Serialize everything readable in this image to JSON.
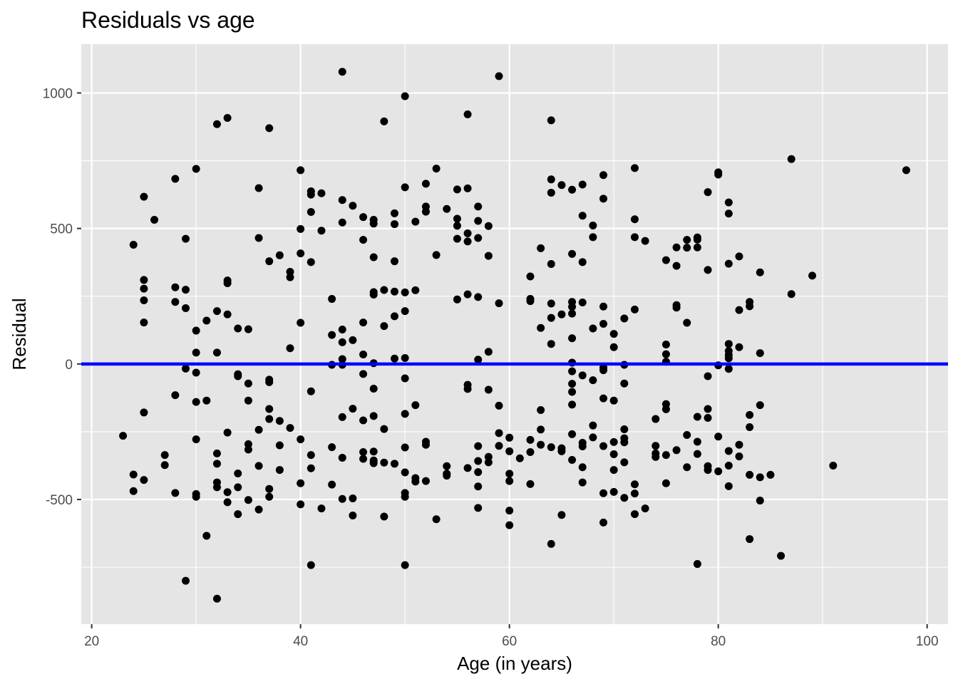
{
  "chart_data": {
    "type": "scatter",
    "title": "Residuals vs age",
    "xlabel": "Age (in years)",
    "ylabel": "Residual",
    "xlim": [
      19,
      102
    ],
    "ylim": [
      -960,
      1180
    ],
    "xticks": [
      20,
      40,
      60,
      80,
      100
    ],
    "xtick_labels": [
      "20",
      "40",
      "60",
      "80",
      "100"
    ],
    "yticks": [
      -500,
      0,
      500,
      1000
    ],
    "ytick_labels": [
      "-500",
      "0",
      "500",
      "1000"
    ],
    "grid": true,
    "legend": "none",
    "reference_line": {
      "y": 0,
      "color": "#0000ff"
    },
    "colors": {
      "panel": "#e5e5e5",
      "grid": "#ffffff",
      "points": "#000000",
      "line": "#0000ff"
    },
    "points": [
      [
        23,
        -265
      ],
      [
        24,
        440
      ],
      [
        24,
        -408
      ],
      [
        24,
        -469
      ],
      [
        25,
        617
      ],
      [
        25,
        310
      ],
      [
        25,
        278
      ],
      [
        25,
        235
      ],
      [
        25,
        153
      ],
      [
        25,
        -179
      ],
      [
        25,
        -428
      ],
      [
        26,
        532
      ],
      [
        27,
        -336
      ],
      [
        27,
        -373
      ],
      [
        28,
        683
      ],
      [
        28,
        283
      ],
      [
        28,
        229
      ],
      [
        28,
        -115
      ],
      [
        28,
        -476
      ],
      [
        29,
        462
      ],
      [
        29,
        274
      ],
      [
        29,
        206
      ],
      [
        29,
        -17
      ],
      [
        29,
        -800
      ],
      [
        30,
        720
      ],
      [
        30,
        123
      ],
      [
        30,
        42
      ],
      [
        30,
        -32
      ],
      [
        30,
        -140
      ],
      [
        30,
        -278
      ],
      [
        30,
        -480
      ],
      [
        30,
        -490
      ],
      [
        31,
        160
      ],
      [
        31,
        -135
      ],
      [
        31,
        -634
      ],
      [
        32,
        885
      ],
      [
        32,
        195
      ],
      [
        32,
        42
      ],
      [
        32,
        -330
      ],
      [
        32,
        -368
      ],
      [
        32,
        -437
      ],
      [
        32,
        -455
      ],
      [
        32,
        -866
      ],
      [
        33,
        908
      ],
      [
        33,
        308
      ],
      [
        33,
        298
      ],
      [
        33,
        183
      ],
      [
        33,
        -253
      ],
      [
        33,
        -473
      ],
      [
        33,
        -510
      ],
      [
        34,
        131
      ],
      [
        34,
        -38
      ],
      [
        34,
        -45
      ],
      [
        34,
        -404
      ],
      [
        34,
        -455
      ],
      [
        34,
        -554
      ],
      [
        35,
        128
      ],
      [
        35,
        -72
      ],
      [
        35,
        -135
      ],
      [
        35,
        -296
      ],
      [
        35,
        -316
      ],
      [
        35,
        -502
      ],
      [
        36,
        649
      ],
      [
        36,
        465
      ],
      [
        36,
        -243
      ],
      [
        36,
        -376
      ],
      [
        36,
        -537
      ],
      [
        37,
        870
      ],
      [
        37,
        379
      ],
      [
        37,
        -58
      ],
      [
        37,
        -67
      ],
      [
        37,
        -166
      ],
      [
        37,
        -203
      ],
      [
        37,
        -461
      ],
      [
        37,
        -490
      ],
      [
        38,
        401
      ],
      [
        38,
        -210
      ],
      [
        38,
        -300
      ],
      [
        38,
        -391
      ],
      [
        39,
        340
      ],
      [
        39,
        320
      ],
      [
        39,
        58
      ],
      [
        39,
        -236
      ],
      [
        40,
        715
      ],
      [
        40,
        498
      ],
      [
        40,
        408
      ],
      [
        40,
        152
      ],
      [
        40,
        -278
      ],
      [
        40,
        -440
      ],
      [
        40,
        -518
      ],
      [
        41,
        637
      ],
      [
        41,
        625
      ],
      [
        41,
        561
      ],
      [
        41,
        376
      ],
      [
        41,
        -101
      ],
      [
        41,
        -336
      ],
      [
        41,
        -385
      ],
      [
        41,
        -742
      ],
      [
        42,
        630
      ],
      [
        42,
        492
      ],
      [
        42,
        -533
      ],
      [
        43,
        240
      ],
      [
        43,
        107
      ],
      [
        43,
        -3
      ],
      [
        43,
        -307
      ],
      [
        43,
        -445
      ],
      [
        44,
        1078
      ],
      [
        44,
        605
      ],
      [
        44,
        522
      ],
      [
        44,
        127
      ],
      [
        44,
        80
      ],
      [
        44,
        18
      ],
      [
        44,
        -3
      ],
      [
        44,
        -196
      ],
      [
        44,
        -346
      ],
      [
        44,
        -498
      ],
      [
        45,
        584
      ],
      [
        45,
        88
      ],
      [
        45,
        -165
      ],
      [
        45,
        -496
      ],
      [
        45,
        -559
      ],
      [
        46,
        542
      ],
      [
        46,
        458
      ],
      [
        46,
        153
      ],
      [
        46,
        35
      ],
      [
        46,
        -37
      ],
      [
        46,
        -208
      ],
      [
        46,
        -325
      ],
      [
        46,
        -350
      ],
      [
        47,
        532
      ],
      [
        47,
        518
      ],
      [
        47,
        394
      ],
      [
        47,
        265
      ],
      [
        47,
        256
      ],
      [
        47,
        3
      ],
      [
        47,
        -91
      ],
      [
        47,
        -192
      ],
      [
        47,
        -323
      ],
      [
        47,
        -356
      ],
      [
        47,
        -366
      ],
      [
        48,
        895
      ],
      [
        48,
        273
      ],
      [
        48,
        140
      ],
      [
        48,
        -240
      ],
      [
        48,
        -364
      ],
      [
        48,
        -563
      ],
      [
        49,
        556
      ],
      [
        49,
        516
      ],
      [
        49,
        379
      ],
      [
        49,
        267
      ],
      [
        49,
        176
      ],
      [
        49,
        20
      ],
      [
        49,
        -368
      ],
      [
        50,
        988
      ],
      [
        50,
        652
      ],
      [
        50,
        264
      ],
      [
        50,
        195
      ],
      [
        50,
        22
      ],
      [
        50,
        -53
      ],
      [
        50,
        -184
      ],
      [
        50,
        -308
      ],
      [
        50,
        -400
      ],
      [
        50,
        -476
      ],
      [
        50,
        -490
      ],
      [
        50,
        -742
      ],
      [
        51,
        525
      ],
      [
        51,
        272
      ],
      [
        51,
        -152
      ],
      [
        51,
        -421
      ],
      [
        51,
        -434
      ],
      [
        52,
        665
      ],
      [
        52,
        581
      ],
      [
        52,
        562
      ],
      [
        52,
        -287
      ],
      [
        52,
        -298
      ],
      [
        52,
        -432
      ],
      [
        53,
        721
      ],
      [
        53,
        402
      ],
      [
        53,
        -573
      ],
      [
        54,
        572
      ],
      [
        54,
        -377
      ],
      [
        54,
        -405
      ],
      [
        54,
        -412
      ],
      [
        55,
        644
      ],
      [
        55,
        536
      ],
      [
        55,
        510
      ],
      [
        55,
        462
      ],
      [
        55,
        238
      ],
      [
        56,
        921
      ],
      [
        56,
        648
      ],
      [
        56,
        482
      ],
      [
        56,
        452
      ],
      [
        56,
        257
      ],
      [
        56,
        -77
      ],
      [
        56,
        -92
      ],
      [
        56,
        -384
      ],
      [
        57,
        581
      ],
      [
        57,
        528
      ],
      [
        57,
        465
      ],
      [
        57,
        247
      ],
      [
        57,
        16
      ],
      [
        57,
        -303
      ],
      [
        57,
        -358
      ],
      [
        57,
        -399
      ],
      [
        57,
        -452
      ],
      [
        57,
        -531
      ],
      [
        58,
        509
      ],
      [
        58,
        399
      ],
      [
        58,
        45
      ],
      [
        58,
        -95
      ],
      [
        58,
        -343
      ],
      [
        58,
        -363
      ],
      [
        59,
        1062
      ],
      [
        59,
        224
      ],
      [
        59,
        -154
      ],
      [
        59,
        -255
      ],
      [
        59,
        -302
      ],
      [
        60,
        -272
      ],
      [
        60,
        -322
      ],
      [
        60,
        -405
      ],
      [
        60,
        -432
      ],
      [
        60,
        -541
      ],
      [
        60,
        -595
      ],
      [
        61,
        -348
      ],
      [
        62,
        323
      ],
      [
        62,
        240
      ],
      [
        62,
        232
      ],
      [
        62,
        -280
      ],
      [
        62,
        -325
      ],
      [
        62,
        -443
      ],
      [
        63,
        427
      ],
      [
        63,
        133
      ],
      [
        63,
        -170
      ],
      [
        63,
        -242
      ],
      [
        63,
        -298
      ],
      [
        64,
        899
      ],
      [
        64,
        681
      ],
      [
        64,
        632
      ],
      [
        64,
        369
      ],
      [
        64,
        223
      ],
      [
        64,
        170
      ],
      [
        64,
        74
      ],
      [
        64,
        -307
      ],
      [
        64,
        -664
      ],
      [
        65,
        660
      ],
      [
        65,
        183
      ],
      [
        65,
        -311
      ],
      [
        65,
        -322
      ],
      [
        65,
        -557
      ],
      [
        66,
        643
      ],
      [
        66,
        406
      ],
      [
        66,
        229
      ],
      [
        66,
        211
      ],
      [
        66,
        186
      ],
      [
        66,
        95
      ],
      [
        66,
        5
      ],
      [
        66,
        -27
      ],
      [
        66,
        -73
      ],
      [
        66,
        -103
      ],
      [
        66,
        -150
      ],
      [
        66,
        -259
      ],
      [
        66,
        -354
      ],
      [
        67,
        662
      ],
      [
        67,
        547
      ],
      [
        67,
        376
      ],
      [
        67,
        227
      ],
      [
        67,
        -42
      ],
      [
        67,
        -291
      ],
      [
        67,
        -304
      ],
      [
        67,
        -381
      ],
      [
        67,
        -437
      ],
      [
        68,
        511
      ],
      [
        68,
        468
      ],
      [
        68,
        131
      ],
      [
        68,
        -60
      ],
      [
        68,
        -227
      ],
      [
        68,
        -271
      ],
      [
        69,
        697
      ],
      [
        69,
        610
      ],
      [
        69,
        212
      ],
      [
        69,
        148
      ],
      [
        69,
        -13
      ],
      [
        69,
        -23
      ],
      [
        69,
        -127
      ],
      [
        69,
        -303
      ],
      [
        69,
        -477
      ],
      [
        69,
        -585
      ],
      [
        70,
        111
      ],
      [
        70,
        62
      ],
      [
        70,
        -135
      ],
      [
        70,
        -288
      ],
      [
        70,
        -333
      ],
      [
        70,
        -391
      ],
      [
        70,
        -472
      ],
      [
        71,
        168
      ],
      [
        71,
        -3
      ],
      [
        71,
        -72
      ],
      [
        71,
        -241
      ],
      [
        71,
        -274
      ],
      [
        71,
        -289
      ],
      [
        71,
        -363
      ],
      [
        71,
        -494
      ],
      [
        72,
        723
      ],
      [
        72,
        534
      ],
      [
        72,
        468
      ],
      [
        72,
        201
      ],
      [
        72,
        -444
      ],
      [
        72,
        -478
      ],
      [
        72,
        -554
      ],
      [
        73,
        454
      ],
      [
        73,
        -533
      ],
      [
        74,
        -203
      ],
      [
        74,
        -302
      ],
      [
        74,
        -330
      ],
      [
        74,
        -343
      ],
      [
        75,
        383
      ],
      [
        75,
        72
      ],
      [
        75,
        36
      ],
      [
        75,
        8
      ],
      [
        75,
        -148
      ],
      [
        75,
        -167
      ],
      [
        75,
        -336
      ],
      [
        75,
        -440
      ],
      [
        76,
        430
      ],
      [
        76,
        362
      ],
      [
        76,
        217
      ],
      [
        76,
        208
      ],
      [
        76,
        -318
      ],
      [
        77,
        458
      ],
      [
        77,
        429
      ],
      [
        77,
        152
      ],
      [
        77,
        -262
      ],
      [
        77,
        -381
      ],
      [
        78,
        467
      ],
      [
        78,
        459
      ],
      [
        78,
        430
      ],
      [
        78,
        -195
      ],
      [
        78,
        -287
      ],
      [
        78,
        -332
      ],
      [
        78,
        -738
      ],
      [
        79,
        634
      ],
      [
        79,
        347
      ],
      [
        79,
        -45
      ],
      [
        79,
        -166
      ],
      [
        79,
        -199
      ],
      [
        79,
        -377
      ],
      [
        79,
        -391
      ],
      [
        80,
        707
      ],
      [
        80,
        699
      ],
      [
        80,
        -5
      ],
      [
        80,
        -268
      ],
      [
        80,
        -396
      ],
      [
        81,
        596
      ],
      [
        81,
        555
      ],
      [
        81,
        370
      ],
      [
        81,
        74
      ],
      [
        81,
        48
      ],
      [
        81,
        33
      ],
      [
        81,
        21
      ],
      [
        81,
        -18
      ],
      [
        81,
        -321
      ],
      [
        81,
        -375
      ],
      [
        81,
        -451
      ],
      [
        82,
        397
      ],
      [
        82,
        199
      ],
      [
        82,
        62
      ],
      [
        82,
        -298
      ],
      [
        82,
        -341
      ],
      [
        83,
        229
      ],
      [
        83,
        213
      ],
      [
        83,
        -188
      ],
      [
        83,
        -233
      ],
      [
        83,
        -409
      ],
      [
        83,
        -646
      ],
      [
        84,
        338
      ],
      [
        84,
        40
      ],
      [
        84,
        -152
      ],
      [
        84,
        -418
      ],
      [
        84,
        -504
      ],
      [
        85,
        -409
      ],
      [
        86,
        -708
      ],
      [
        87,
        756
      ],
      [
        87,
        258
      ],
      [
        89,
        326
      ],
      [
        91,
        -375
      ],
      [
        98,
        715
      ]
    ]
  }
}
